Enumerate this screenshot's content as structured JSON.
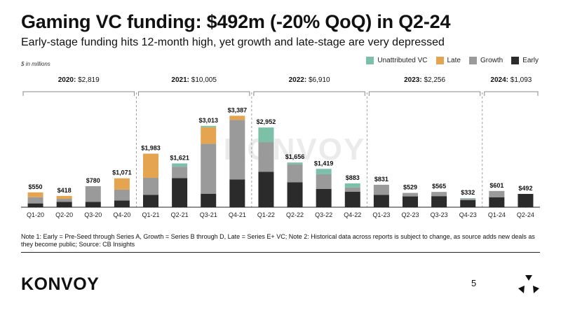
{
  "title": "Gaming VC funding: $492m (-20% QoQ) in Q2-24",
  "subtitle": "Early-stage funding hits 12-month high, yet growth and late-stage are very depressed",
  "unit_label": "$ in millions",
  "legend": [
    {
      "name": "Unattributed VC",
      "color": "#7cc0a8"
    },
    {
      "name": "Late",
      "color": "#e5a550"
    },
    {
      "name": "Growth",
      "color": "#9a9a9a"
    },
    {
      "name": "Early",
      "color": "#2b2b2b"
    }
  ],
  "watermark": "KONVOY",
  "chart_data": {
    "type": "bar",
    "stacked": true,
    "categories": [
      "Q1-20",
      "Q2-20",
      "Q3-20",
      "Q4-20",
      "Q1-21",
      "Q2-21",
      "Q3-21",
      "Q4-21",
      "Q1-22",
      "Q2-22",
      "Q3-22",
      "Q4-22",
      "Q1-23",
      "Q2-23",
      "Q3-23",
      "Q4-23",
      "Q1-24",
      "Q2-24"
    ],
    "totals": [
      550,
      418,
      780,
      1071,
      1983,
      1621,
      3013,
      3387,
      2952,
      1656,
      1419,
      883,
      831,
      529,
      565,
      332,
      601,
      492
    ],
    "total_labels": [
      "$550",
      "$418",
      "$780",
      "$1,071",
      "$1,983",
      "$1,621",
      "$3,013",
      "$3,387",
      "$2,952",
      "$1,656",
      "$1,419",
      "$883",
      "$831",
      "$529",
      "$565",
      "$332",
      "$601",
      "$492"
    ],
    "series": [
      {
        "name": "Early",
        "color": "#2b2b2b",
        "values": [
          140,
          200,
          200,
          250,
          460,
          1080,
          500,
          1030,
          1310,
          920,
          680,
          570,
          460,
          400,
          410,
          260,
          370,
          492
        ]
      },
      {
        "name": "Growth",
        "color": "#9a9a9a",
        "values": [
          230,
          110,
          580,
          400,
          630,
          420,
          1850,
          2200,
          1100,
          670,
          540,
          160,
          371,
          129,
          155,
          52,
          231,
          0
        ]
      },
      {
        "name": "Late",
        "color": "#e5a550",
        "values": [
          180,
          108,
          0,
          421,
          893,
          0,
          613,
          157,
          0,
          0,
          0,
          0,
          0,
          0,
          0,
          0,
          0,
          0
        ]
      },
      {
        "name": "Unattributed VC",
        "color": "#7cc0a8",
        "values": [
          0,
          0,
          0,
          0,
          0,
          121,
          50,
          0,
          542,
          66,
          199,
          153,
          0,
          0,
          0,
          20,
          0,
          0
        ]
      }
    ],
    "years": [
      {
        "year": "2020:",
        "total": "$2,819",
        "quarters": 4
      },
      {
        "year": "2021:",
        "total": "$10,005",
        "quarters": 4
      },
      {
        "year": "2022:",
        "total": "$6,910",
        "quarters": 4
      },
      {
        "year": "2023:",
        "total": "$2,256",
        "quarters": 4
      },
      {
        "year": "2024:",
        "total": "$1,093",
        "quarters": 2
      }
    ],
    "ylim": [
      0,
      3500
    ],
    "grid": false,
    "legend_position": "top-right"
  },
  "note": "Note 1: Early = Pre-Seed through Series A, Growth = Series B through D, Late = Series E+ VC; Note 2: Historical data across reports is subject to change, as source adds new deals as they become public; Source: CB Insights",
  "footer": {
    "logo": "KONVOY",
    "page_number": "5"
  }
}
